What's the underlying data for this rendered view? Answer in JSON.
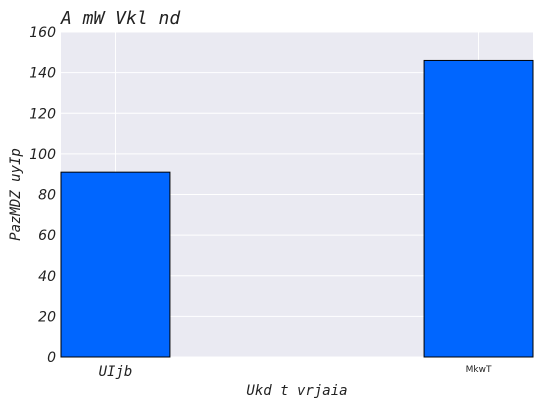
{
  "chart_data": {
    "type": "bar",
    "title": "A mW Vkl nd",
    "xlabel": "Ukd t vrjaia",
    "ylabel": "PazMDZ uyIp",
    "categories": [
      "UIjb",
      "MkwT"
    ],
    "values": [
      91,
      146
    ],
    "ylim": [
      0,
      160
    ],
    "yticks": [
      0,
      20,
      40,
      60,
      80,
      100,
      120,
      140,
      160
    ],
    "grid": true,
    "bar_color": "#0066ff",
    "background_color": "#eaeaf2"
  }
}
